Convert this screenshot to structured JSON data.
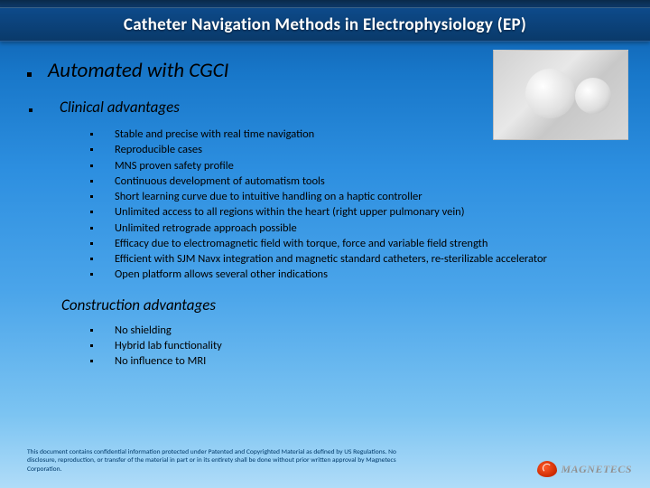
{
  "title": "Catheter Navigation Methods in Electrophysiology (EP)",
  "main_heading": "Automated with CGCI",
  "clinical_heading": "Clinical advantages",
  "clinical_items": [
    "Stable and precise with real time navigation",
    "Reproducible cases",
    "MNS proven safety profile",
    "Continuous development of automatism tools",
    "Short learning curve due to intuitive handling on a haptic controller",
    "Unlimited access to all regions within the heart (right upper pulmonary vein)",
    "Unlimited retrograde approach possible",
    "Efficacy due to electromagnetic field with torque, force and variable field strength",
    "Efficient with SJM Navx integration and magnetic standard catheters, re-sterilizable accelerator",
    "Open platform allows several other indications"
  ],
  "construction_heading": "Construction advantages",
  "construction_items": [
    "No shielding",
    "Hybrid lab functionality",
    "No influence to MRI"
  ],
  "disclaimer": "This document contains confidential information protected under Patented and Copyrighted Material as defined by US Regulations. No disclosure, reproduction, or transfer of the material in part or in its entirety shall be done without prior written approval by Magnetecs Corporation.",
  "logo_text": "MAGNETECS",
  "colors": {
    "bg_top": "#0a5aa8",
    "bg_bottom": "#b0dcf8",
    "title_bar": "#0d4a8a",
    "title_text": "#ffffff",
    "body_text": "#000000",
    "disclaimer_text": "#003a6a",
    "logo_swirl": "#ff5a2a"
  },
  "fonts": {
    "body": "Calibri",
    "title_size": 19,
    "main_size": 23,
    "sub_size": 17,
    "detail_size": 12.5,
    "disclaimer_size": 7.5
  }
}
